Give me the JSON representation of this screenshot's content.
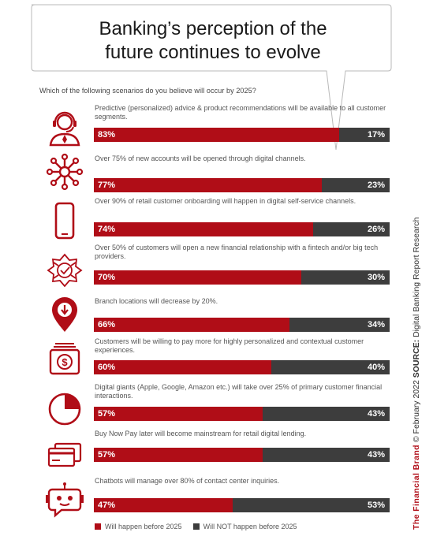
{
  "title_line1": "Banking’s perception of the",
  "title_line2": "future continues to evolve",
  "question": "Which of the following scenarios do you believe will occur by 2025?",
  "colors": {
    "will": "#b00d17",
    "will_not": "#3d3d3d",
    "icon": "#b00d17"
  },
  "legend": {
    "will": "Will happen before 2025",
    "will_not": "Will NOT happen before 2025"
  },
  "side": {
    "brand": "The Financial Brand",
    "copyright": "© February 2022",
    "source_label": "SOURCE:",
    "source_name": "Digital Banking Report Research"
  },
  "chart_data": {
    "type": "bar",
    "orientation": "horizontal-stacked",
    "series": [
      {
        "name": "Will happen before 2025",
        "values": [
          83,
          77,
          74,
          70,
          66,
          60,
          57,
          57,
          47
        ]
      },
      {
        "name": "Will NOT happen before 2025",
        "values": [
          17,
          23,
          26,
          30,
          34,
          40,
          43,
          43,
          53
        ]
      }
    ],
    "items": [
      {
        "icon": "advisor-icon",
        "text": "Predictive (personalized) advice & product recommendations will be available to all customer segments.",
        "yes": 83,
        "yes_label": "83%",
        "no": 17,
        "no_label": "17%"
      },
      {
        "icon": "network-icon",
        "text": "Over 75% of new accounts will be opened through digital channels.",
        "yes": 77,
        "yes_label": "77%",
        "no": 23,
        "no_label": "23%"
      },
      {
        "icon": "mobile-phone-icon",
        "text": "Over 90% of retail customer onboarding will happen in digital self-service channels.",
        "yes": 74,
        "yes_label": "74%",
        "no": 26,
        "no_label": "26%"
      },
      {
        "icon": "fintech-badge-icon",
        "text": "Over 50% of customers will open a new financial relationship with a fintech and/or big tech providers.",
        "yes": 70,
        "yes_label": "70%",
        "no": 30,
        "no_label": "30%"
      },
      {
        "icon": "location-pin-down-icon",
        "text": "Branch locations will decrease by 20%.",
        "yes": 66,
        "yes_label": "66%",
        "no": 34,
        "no_label": "34%"
      },
      {
        "icon": "dollar-bill-icon",
        "text": "Customers will be willing to pay more for highly personalized and contextual customer experiences.",
        "yes": 60,
        "yes_label": "60%",
        "no": 40,
        "no_label": "40%"
      },
      {
        "icon": "pie-chart-icon",
        "text": "Digital giants (Apple, Google, Amazon etc.) will take over 25% of primary customer financial interactions.",
        "yes": 57,
        "yes_label": "57%",
        "no": 43,
        "no_label": "43%"
      },
      {
        "icon": "credit-cards-icon",
        "text": "Buy Now Pay later will become mainstream for retail digital lending.",
        "yes": 57,
        "yes_label": "57%",
        "no": 43,
        "no_label": "43%"
      },
      {
        "icon": "chatbot-icon",
        "text": "Chatbots will manage over 80% of contact center inquiries.",
        "yes": 47,
        "yes_label": "47%",
        "no": 53,
        "no_label": "53%"
      }
    ]
  }
}
